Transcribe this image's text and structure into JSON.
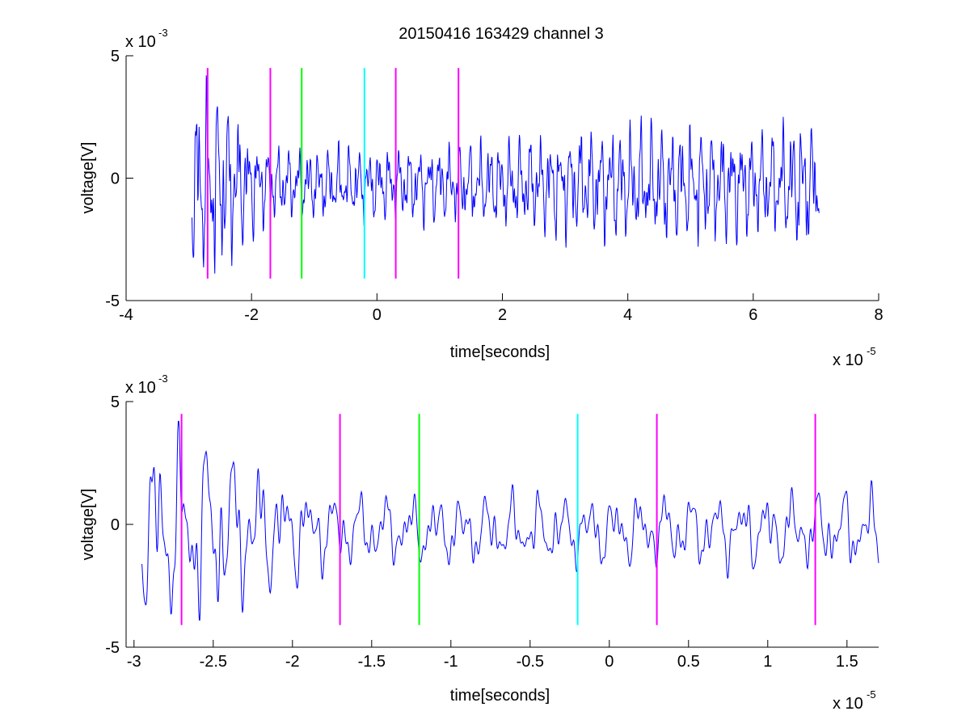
{
  "title": "20150416 163429 channel 3",
  "colors": {
    "signal": "#0000ff",
    "magenta": "#ff00ff",
    "green": "#00ff00",
    "cyan": "#00ffff",
    "axis": "#000000"
  },
  "chart_data": [
    {
      "type": "line",
      "title": "20150416 163429 channel 3",
      "xlabel": "time[seconds]",
      "ylabel": "voltage[V]",
      "x_multiplier": "x 10",
      "x_exponent": "-5",
      "y_multiplier": "x 10",
      "y_exponent": "-3",
      "xlim": [
        -4,
        8
      ],
      "ylim": [
        -5,
        5
      ],
      "x_ticks": [
        -4,
        -2,
        0,
        2,
        4,
        6,
        8
      ],
      "x_tick_labels": [
        "-4",
        "-2",
        "0",
        "2",
        "4",
        "6",
        "8"
      ],
      "y_ticks": [
        -5,
        0,
        5
      ],
      "y_tick_labels": [
        "-5",
        "0",
        "5"
      ],
      "grid": false,
      "signal_x_range": [
        -2.95,
        7.05
      ],
      "markers": [
        {
          "x": -2.7,
          "color": "magenta",
          "y_range": [
            -4.1,
            4.5
          ]
        },
        {
          "x": -1.7,
          "color": "magenta",
          "y_range": [
            -4.1,
            4.5
          ]
        },
        {
          "x": -1.2,
          "color": "green",
          "y_range": [
            -4.1,
            4.5
          ]
        },
        {
          "x": -0.2,
          "color": "cyan",
          "y_range": [
            -4.1,
            4.5
          ]
        },
        {
          "x": 0.3,
          "color": "magenta",
          "y_range": [
            -4.1,
            4.5
          ]
        },
        {
          "x": 1.3,
          "color": "magenta",
          "y_range": [
            -4.1,
            4.5
          ]
        }
      ]
    },
    {
      "type": "line",
      "xlabel": "time[seconds]",
      "ylabel": "voltage[V]",
      "x_multiplier": "x 10",
      "x_exponent": "-5",
      "y_multiplier": "x 10",
      "y_exponent": "-3",
      "xlim": [
        -3.05,
        1.7
      ],
      "ylim": [
        -5,
        5
      ],
      "x_ticks": [
        -3,
        -2.5,
        -2,
        -1.5,
        -1,
        -0.5,
        0,
        0.5,
        1,
        1.5
      ],
      "x_tick_labels": [
        "-3",
        "-2.5",
        "-2",
        "-1.5",
        "-1",
        "-0.5",
        "0",
        "0.5",
        "1",
        "1.5"
      ],
      "y_ticks": [
        -5,
        0,
        5
      ],
      "y_tick_labels": [
        "-5",
        "0",
        "5"
      ],
      "grid": false,
      "signal_x_range": [
        -2.95,
        1.7
      ],
      "markers": [
        {
          "x": -2.7,
          "color": "magenta",
          "y_range": [
            -4.1,
            4.5
          ]
        },
        {
          "x": -1.7,
          "color": "magenta",
          "y_range": [
            -4.1,
            4.5
          ]
        },
        {
          "x": -1.2,
          "color": "green",
          "y_range": [
            -4.1,
            4.5
          ]
        },
        {
          "x": -0.2,
          "color": "cyan",
          "y_range": [
            -4.1,
            4.5
          ]
        },
        {
          "x": 0.3,
          "color": "magenta",
          "y_range": [
            -4.1,
            4.5
          ]
        },
        {
          "x": 1.3,
          "color": "magenta",
          "y_range": [
            -4.1,
            4.5
          ]
        }
      ]
    }
  ]
}
